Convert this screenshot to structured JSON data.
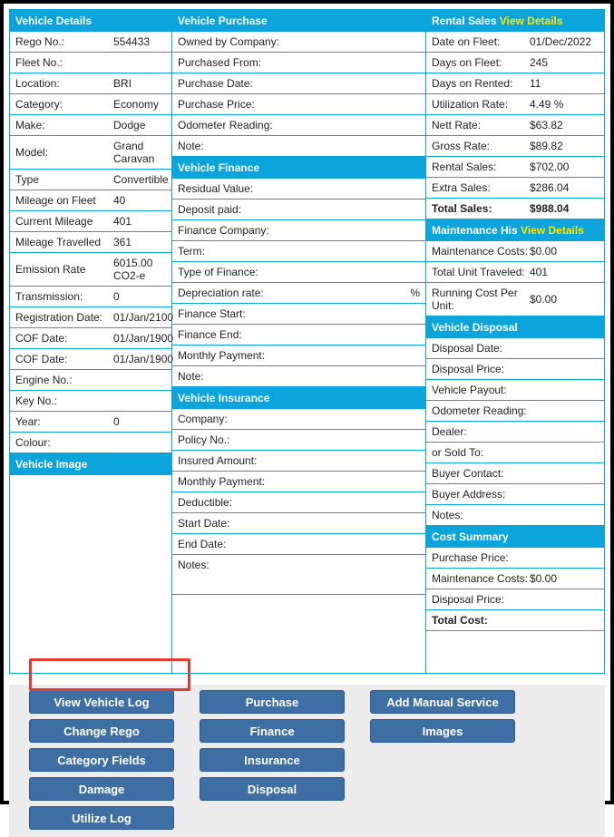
{
  "vehicleDetails": {
    "header": "Vehicle Details",
    "rows": [
      {
        "label": "Rego No.:",
        "value": "554433"
      },
      {
        "label": "Fleet No.:",
        "value": ""
      },
      {
        "label": "Location:",
        "value": "BRI"
      },
      {
        "label": "Category:",
        "value": "Economy"
      },
      {
        "label": "Make:",
        "value": "Dodge"
      },
      {
        "label": "Model:",
        "value": "Grand Caravan"
      },
      {
        "label": "Type",
        "value": "Convertible"
      },
      {
        "label": "Mileage on Fleet",
        "value": "40"
      },
      {
        "label": "Current Mileage",
        "value": "401"
      },
      {
        "label": "Mileage Travelled",
        "value": "361"
      },
      {
        "label": "Emission Rate",
        "value": "6015.00 CO2-e"
      },
      {
        "label": "Transmission:",
        "value": "0"
      },
      {
        "label": "Registration Date:",
        "value": "01/Jan/2100"
      },
      {
        "label": "COF Date:",
        "value": "01/Jan/1900"
      },
      {
        "label": "COF Date:",
        "value": "01/Jan/1900"
      },
      {
        "label": "Engine No.:",
        "value": ""
      },
      {
        "label": "Key No.:",
        "value": ""
      },
      {
        "label": "Year:",
        "value": "0"
      },
      {
        "label": "Colour:",
        "value": ""
      }
    ],
    "imageHeader": "Vehicle Image"
  },
  "vehiclePurchase": {
    "header": "Vehicle Purchase",
    "rows": [
      {
        "label": "Owned by Company:"
      },
      {
        "label": "Purchased From:"
      },
      {
        "label": "Purchase Date:"
      },
      {
        "label": "Purchase Price:"
      },
      {
        "label": "Odometer Reading:"
      },
      {
        "label": "Note:"
      }
    ]
  },
  "vehicleFinance": {
    "header": "Vehicle Finance",
    "rows": [
      {
        "label": "Residual Value:"
      },
      {
        "label": "Deposit paid:"
      },
      {
        "label": "Finance Company:"
      },
      {
        "label": "Term:"
      },
      {
        "label": "Type of Finance:"
      },
      {
        "label": "Depreciation rate:",
        "suffix": "%"
      },
      {
        "label": "Finance Start:"
      },
      {
        "label": "Finance End:"
      },
      {
        "label": "Monthly Payment:"
      },
      {
        "label": "Note:"
      }
    ]
  },
  "vehicleInsurance": {
    "header": "Vehicle Insurance",
    "rows": [
      {
        "label": "Company:"
      },
      {
        "label": "Policy No.:"
      },
      {
        "label": "Insured Amount:"
      },
      {
        "label": "Monthly Payment:"
      },
      {
        "label": "Deductible:"
      },
      {
        "label": "Start Date:"
      },
      {
        "label": "End Date:"
      },
      {
        "label": "Notes:",
        "tall": true
      }
    ]
  },
  "rentalSales": {
    "header": "Rental Sales",
    "headerLink": "View Details",
    "rows": [
      {
        "label": "Date on Fleet:",
        "value": "01/Dec/2022"
      },
      {
        "label": "Days on Fleet:",
        "value": "245"
      },
      {
        "label": "Days on Rented:",
        "value": "11"
      },
      {
        "label": "Utilization Rate:",
        "value": "4.49 %"
      },
      {
        "label": "Nett Rate:",
        "value": "$63.82"
      },
      {
        "label": "Gross Rate:",
        "value": "$89.82"
      },
      {
        "label": "Rental Sales:",
        "value": "$702.00"
      },
      {
        "label": "Extra Sales:",
        "value": "$286.04"
      },
      {
        "label": "Total Sales:",
        "value": "$988.04",
        "bold": true
      }
    ]
  },
  "maintenanceHis": {
    "header": "Maintenance His",
    "headerLink": "View Details",
    "rows": [
      {
        "label": "Maintenance Costs:",
        "value": "$0.00"
      },
      {
        "label": "Total Unit Traveled:",
        "value": "401"
      },
      {
        "label": "Running Cost Per Unit:",
        "value": "$0.00"
      }
    ]
  },
  "vehicleDisposal": {
    "header": "Vehicle Disposal",
    "rows": [
      {
        "label": "Disposal Date:"
      },
      {
        "label": "Disposal Price:"
      },
      {
        "label": "Vehicle Payout:"
      },
      {
        "label": "Odometer Reading:"
      },
      {
        "label": "Dealer:"
      },
      {
        "label": "or Sold To:"
      },
      {
        "label": "Buyer Contact:"
      },
      {
        "label": "Buyer Address:"
      },
      {
        "label": "Notes:"
      }
    ]
  },
  "costSummary": {
    "header": "Cost Summary",
    "rows": [
      {
        "label": "Purchase Price:"
      },
      {
        "label": "Maintenance Costs:",
        "value": "$0.00"
      },
      {
        "label": "Disposal Price:"
      },
      {
        "label": "Total Cost:",
        "bold": true
      }
    ]
  },
  "buttons": {
    "col1": [
      "View Vehicle Log",
      "Change Rego",
      "Category Fields",
      "Damage",
      "Utilize Log"
    ],
    "col2": [
      "Purchase",
      "Finance",
      "Insurance",
      "Disposal"
    ],
    "col3": [
      "Add Manual Service",
      "Images"
    ]
  }
}
